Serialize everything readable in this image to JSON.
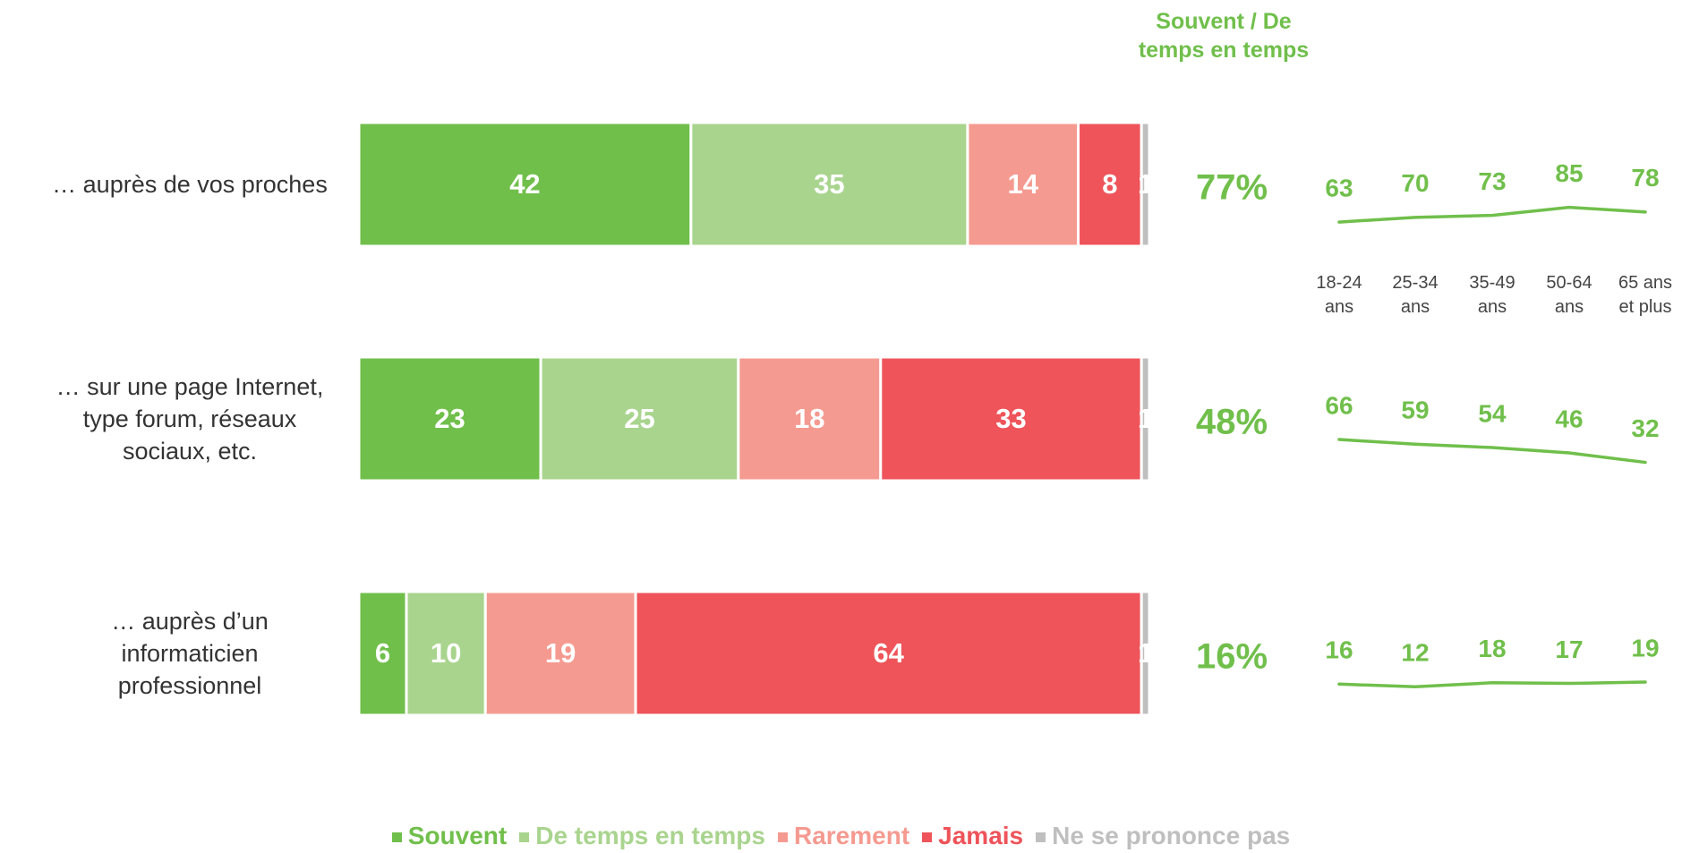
{
  "chart_data": {
    "type": "stacked-bar-horizontal",
    "categories": [
      "… auprès de vos proches",
      "… sur une page Internet, type forum, réseaux sociaux, etc.",
      "… auprès d’un informaticien professionnel"
    ],
    "series": [
      {
        "name": "Souvent",
        "color": "#70bf4b",
        "values": [
          42,
          23,
          6
        ]
      },
      {
        "name": "De temps en temps",
        "color": "#a9d48e",
        "values": [
          35,
          25,
          10
        ]
      },
      {
        "name": "Rarement",
        "color": "#f59a90",
        "values": [
          14,
          18,
          19
        ]
      },
      {
        "name": "Jamais",
        "color": "#ee545a",
        "values": [
          8,
          33,
          64
        ]
      },
      {
        "name": "Ne se prononce pas",
        "color": "#bfbfbf",
        "values": [
          1,
          1,
          1
        ]
      }
    ],
    "xlim": [
      0,
      100
    ],
    "totals": {
      "title": "Souvent / De temps en temps",
      "color": "#70bf4b",
      "values": [
        77,
        48,
        16
      ],
      "value_labels": [
        "77%",
        "48%",
        "16%"
      ]
    },
    "age_groups": {
      "categories": [
        "18-24 ans",
        "25-34 ans",
        "35-49 ans",
        "50-64 ans",
        "65 ans et plus"
      ],
      "color": "#70bf4b",
      "rows": [
        [
          63,
          70,
          73,
          85,
          78
        ],
        [
          66,
          59,
          54,
          46,
          32
        ],
        [
          16,
          12,
          18,
          17,
          19
        ]
      ]
    }
  }
}
